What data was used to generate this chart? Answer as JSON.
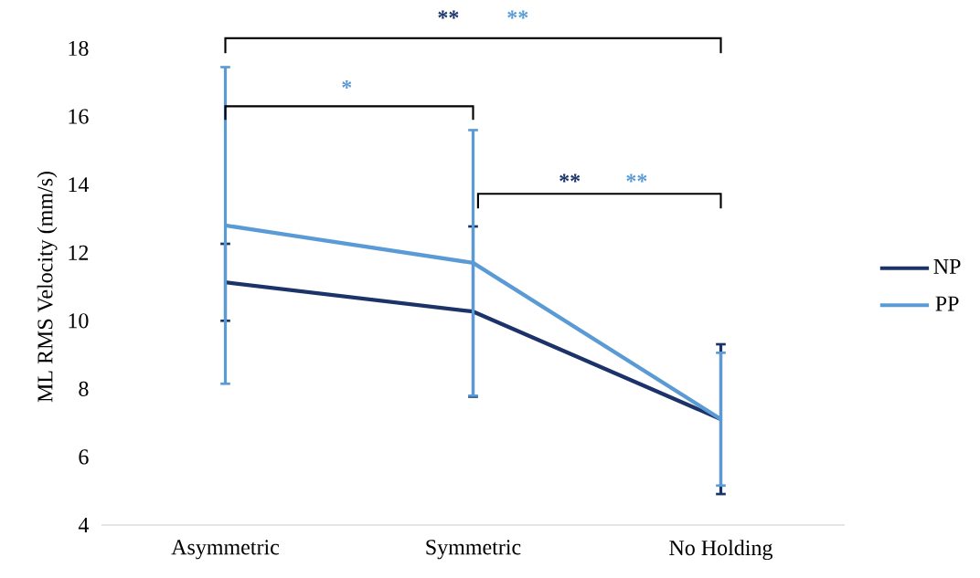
{
  "chart_data": {
    "type": "line",
    "ylabel": "ML RMS Velocity (mm/s)",
    "categories": [
      "Asymmetric",
      "Symmetric",
      "No Holding"
    ],
    "series": [
      {
        "name": "NP",
        "color": "#1b3368",
        "values": [
          11.13,
          10.27,
          7.11
        ],
        "errors": [
          1.13,
          2.5,
          2.2
        ]
      },
      {
        "name": "PP",
        "color": "#5b9bd5",
        "values": [
          12.8,
          11.7,
          7.11
        ],
        "errors": [
          4.65,
          3.9,
          1.95
        ]
      }
    ],
    "ylim": [
      4,
      18
    ],
    "yticks": [
      4,
      6,
      8,
      10,
      12,
      14,
      16,
      18
    ],
    "grid": false,
    "legend": "right",
    "marker": "none",
    "line_style": "solid",
    "annotations": [
      "**",
      "**",
      "*",
      "**",
      "**"
    ]
  }
}
